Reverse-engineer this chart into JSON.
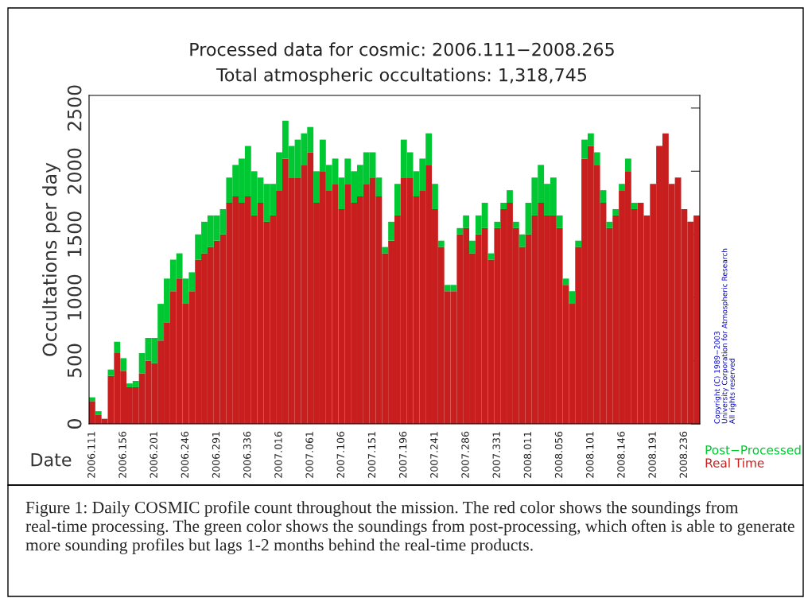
{
  "chart_data": {
    "type": "bar",
    "title": "Processed data for cosmic: 2006.111−2008.265",
    "subtitle": "Total atmospheric occultations: 1,318,745",
    "xlabel": "Date",
    "ylabel": "Occultations per day",
    "categories": [
      "2006.111",
      null,
      null,
      null,
      null,
      "2006.156",
      null,
      null,
      null,
      null,
      "2006.201",
      null,
      null,
      null,
      null,
      "2006.246",
      null,
      null,
      null,
      null,
      "2006.291",
      null,
      null,
      null,
      null,
      "2006.336",
      null,
      null,
      null,
      null,
      "2007.016",
      null,
      null,
      null,
      null,
      "2007.061",
      null,
      null,
      null,
      null,
      "2007.106",
      null,
      null,
      null,
      null,
      "2007.151",
      null,
      null,
      null,
      null,
      "2007.196",
      null,
      null,
      null,
      null,
      "2007.241",
      null,
      null,
      null,
      null,
      "2007.286",
      null,
      null,
      null,
      null,
      "2007.331",
      null,
      null,
      null,
      null,
      "2008.011",
      null,
      null,
      null,
      null,
      "2008.056",
      null,
      null,
      null,
      null,
      "2008.101",
      null,
      null,
      null,
      null,
      "2008.146",
      null,
      null,
      null,
      null,
      "2008.191",
      null,
      null,
      null,
      null,
      "2008.236",
      null,
      null
    ],
    "series": [
      {
        "name": "Real Time",
        "color": "#c81e1e",
        "values": [
          180,
          70,
          40,
          380,
          560,
          420,
          290,
          290,
          400,
          500,
          480,
          660,
          800,
          1050,
          1150,
          950,
          1050,
          1300,
          1350,
          1400,
          1450,
          1500,
          1750,
          1800,
          1750,
          1800,
          1650,
          1750,
          1600,
          1650,
          1850,
          2100,
          1950,
          1950,
          2050,
          2150,
          1750,
          2000,
          1850,
          1900,
          1700,
          1900,
          1750,
          1800,
          1900,
          1950,
          1800,
          1350,
          1450,
          1650,
          1950,
          1950,
          1800,
          1850,
          2050,
          1700,
          1400,
          1050,
          1050,
          1500,
          1550,
          1350,
          1500,
          1550,
          1300,
          1550,
          1700,
          1750,
          1550,
          1400,
          1500,
          1650,
          1750,
          1650,
          1650,
          1550,
          1100,
          950,
          1400,
          2100,
          2200,
          2050,
          1750,
          1550,
          1650,
          1850,
          2000,
          1700,
          1750,
          1650,
          1900,
          2200,
          2300,
          1900,
          1950,
          1700,
          1600,
          1650
        ]
      },
      {
        "name": "Post−Processed",
        "color": "#00c832",
        "values": [
          30,
          30,
          null,
          50,
          90,
          100,
          30,
          50,
          160,
          180,
          200,
          290,
          350,
          250,
          200,
          200,
          150,
          200,
          250,
          250,
          200,
          200,
          200,
          250,
          350,
          400,
          350,
          200,
          300,
          250,
          300,
          300,
          250,
          300,
          250,
          200,
          250,
          250,
          200,
          200,
          250,
          200,
          250,
          250,
          250,
          200,
          150,
          50,
          150,
          250,
          300,
          200,
          200,
          250,
          250,
          200,
          50,
          50,
          50,
          50,
          100,
          100,
          150,
          200,
          50,
          50,
          50,
          100,
          50,
          100,
          250,
          300,
          300,
          250,
          300,
          100,
          50,
          100,
          50,
          150,
          100,
          100,
          100,
          50,
          50,
          50,
          100,
          50,
          null,
          null,
          null,
          null,
          null,
          null,
          null,
          null,
          null,
          null
        ]
      }
    ],
    "stacked": true,
    "ylim": [
      0,
      2600
    ],
    "yticks": [
      0,
      500,
      1000,
      1500,
      2000,
      2500
    ],
    "legend": "bottom right",
    "annotations": [
      "Copyright (C) 1989−2003\nUniversity Corporation for Atmospheric Research\nAll rights reserved",
      "Figure 1: Daily COSMIC profile count throughout the mission. The red color shows the soundings from real-time processing. The green color shows the soundings from post-processing, which often is able to generate more sounding profiles but lags 1-2 months behind the real-time products."
    ]
  }
}
